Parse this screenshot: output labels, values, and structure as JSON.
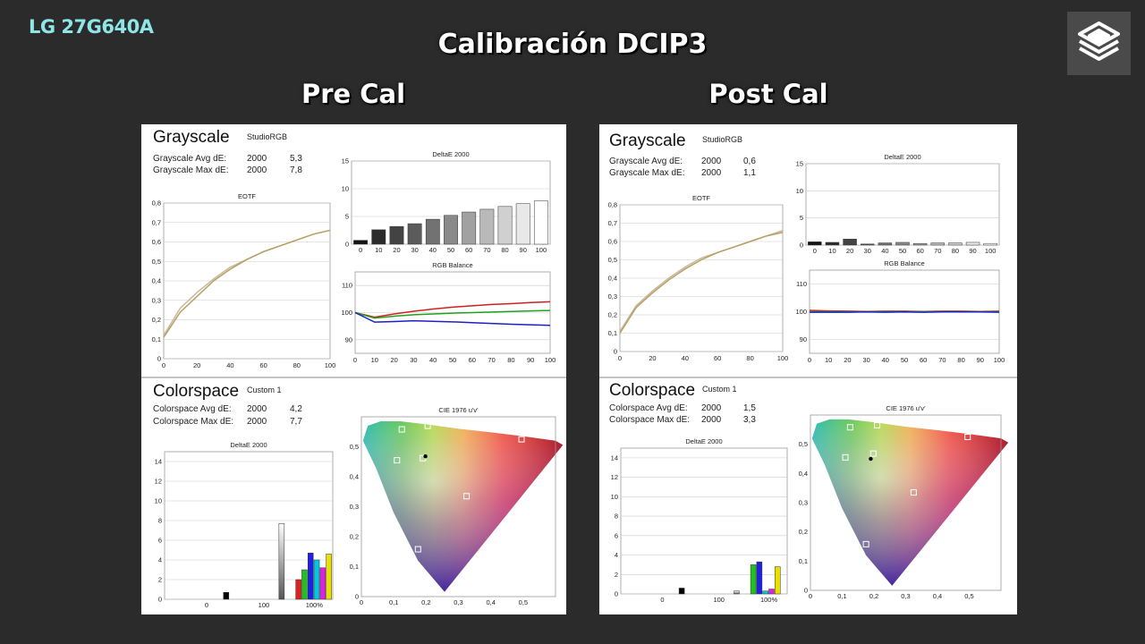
{
  "header": {
    "model": "LG 27G640A",
    "title": "Calibración DCIP3",
    "pre_label": "Pre Cal",
    "post_label": "Post Cal"
  },
  "colors": {
    "background": "#2b2b2b",
    "model_text": "#8ee6e6",
    "eotf_target": "#c9b89a",
    "eotf_measured": "#b5a165",
    "red": "#d02020",
    "green": "#20a020",
    "blue": "#2020c0"
  },
  "pre": {
    "grayscale": {
      "title": "Grayscale",
      "profile": "StudioRGB",
      "avg_label": "Grayscale Avg dE:",
      "avg_std": "2000",
      "avg_val": "5,3",
      "max_label": "Grayscale Max dE:",
      "max_std": "2000",
      "max_val": "7,8"
    },
    "colorspace": {
      "title": "Colorspace",
      "profile": "Custom 1",
      "avg_label": "Colorspace Avg dE:",
      "avg_std": "2000",
      "avg_val": "4,2",
      "max_label": "Colorspace Max dE:",
      "max_std": "2000",
      "max_val": "7,7"
    }
  },
  "post": {
    "grayscale": {
      "title": "Grayscale",
      "profile": "StudioRGB",
      "avg_label": "Grayscale Avg dE:",
      "avg_std": "2000",
      "avg_val": "0,6",
      "max_label": "Grayscale Max dE:",
      "max_std": "2000",
      "max_val": "1,1"
    },
    "colorspace": {
      "title": "Colorspace",
      "profile": "Custom 1",
      "avg_label": "Colorspace Avg dE:",
      "avg_std": "2000",
      "avg_val": "1,5",
      "max_label": "Colorspace Max dE:",
      "max_std": "2000",
      "max_val": "3,3"
    }
  },
  "chart_data": [
    {
      "id": "pre-eotf",
      "type": "line",
      "title": "EOTF",
      "x": [
        0,
        10,
        20,
        30,
        40,
        50,
        60,
        70,
        80,
        90,
        100
      ],
      "series": [
        {
          "values": [
            0.12,
            0.26,
            0.34,
            0.41,
            0.47,
            0.51,
            0.55,
            0.58,
            0.61,
            0.64,
            0.66
          ]
        },
        {
          "values": [
            0.11,
            0.24,
            0.32,
            0.4,
            0.46,
            0.51,
            0.55,
            0.58,
            0.61,
            0.64,
            0.66
          ]
        }
      ],
      "xlim": [
        0,
        100
      ],
      "ylim": [
        0,
        0.8
      ],
      "xticks": [
        "0",
        "20",
        "40",
        "60",
        "80",
        "100"
      ],
      "yticks": [
        "0",
        "0,1",
        "0,2",
        "0,3",
        "0,4",
        "0,5",
        "0,6",
        "0,7",
        "0,8"
      ]
    },
    {
      "id": "pre-grayscale-de",
      "type": "bar",
      "title": "DeltaE 2000",
      "categories": [
        "0",
        "10",
        "20",
        "30",
        "40",
        "50",
        "60",
        "70",
        "80",
        "90",
        "100"
      ],
      "values": [
        0.7,
        2.6,
        3.2,
        3.7,
        4.5,
        5.2,
        5.8,
        6.3,
        6.8,
        7.3,
        7.8
      ],
      "ylim": [
        0,
        15
      ],
      "yticks": [
        "0",
        "5",
        "10",
        "15"
      ]
    },
    {
      "id": "pre-rgb-balance",
      "type": "line",
      "title": "RGB Balance",
      "x": [
        0,
        10,
        20,
        30,
        40,
        50,
        60,
        70,
        80,
        90,
        100
      ],
      "series": [
        {
          "name": "Red",
          "values": [
            100,
            98.3,
            99.5,
            100.5,
            101.3,
            102,
            102.5,
            103,
            103.3,
            103.7,
            104
          ]
        },
        {
          "name": "Green",
          "values": [
            100,
            98,
            98.7,
            99.2,
            99.5,
            99.8,
            100,
            100.2,
            100.4,
            100.6,
            100.8
          ]
        },
        {
          "name": "Blue",
          "values": [
            100,
            96.5,
            96.7,
            97,
            96.8,
            96.6,
            96.3,
            96,
            95.7,
            95.5,
            95.3
          ]
        }
      ],
      "ylim": [
        85,
        115
      ],
      "yticks": [
        "90",
        "100",
        "110"
      ],
      "xticks": [
        "0",
        "10",
        "20",
        "30",
        "40",
        "50",
        "60",
        "70",
        "80",
        "90",
        "100"
      ]
    },
    {
      "id": "pre-colorspace-de",
      "type": "bar",
      "title": "DeltaE 2000",
      "categories": [
        "0",
        "100",
        "100%"
      ],
      "bars": [
        {
          "color": "#000000",
          "value": 0.7
        },
        {
          "color": "#ffffff",
          "value": 7.7
        },
        {
          "color": "#e02020",
          "value": 2.0
        },
        {
          "color": "#20c020",
          "value": 3.0
        },
        {
          "color": "#2020e0",
          "value": 4.7
        },
        {
          "color": "#00c8e0",
          "value": 4.0
        },
        {
          "color": "#e020e0",
          "value": 3.2
        },
        {
          "color": "#e8e000",
          "value": 4.6
        }
      ],
      "ylim": [
        0,
        15
      ],
      "yticks": [
        "0",
        "2",
        "4",
        "6",
        "8",
        "10",
        "12",
        "14"
      ]
    },
    {
      "id": "pre-cie",
      "type": "scatter",
      "title": "CIE 1976 u'v'",
      "points": [
        {
          "u": 0.495,
          "v": 0.525,
          "role": "target-red"
        },
        {
          "u": 0.125,
          "v": 0.558,
          "role": "target-green"
        },
        {
          "u": 0.175,
          "v": 0.158,
          "role": "target-blue"
        },
        {
          "u": 0.19,
          "v": 0.462,
          "role": "target-white"
        },
        {
          "u": 0.325,
          "v": 0.335,
          "role": "target-magenta"
        },
        {
          "u": 0.11,
          "v": 0.455,
          "role": "target-cyan"
        },
        {
          "u": 0.205,
          "v": 0.57,
          "role": "target-yellow"
        }
      ],
      "white_point": {
        "u": 0.198,
        "v": 0.468
      },
      "xlim": [
        0,
        0.6
      ],
      "ylim": [
        0,
        0.6
      ],
      "xticks": [
        "0",
        "0,1",
        "0,2",
        "0,3",
        "0,4",
        "0,5"
      ],
      "yticks": [
        "0",
        "0,1",
        "0,2",
        "0,3",
        "0,4",
        "0,5"
      ]
    },
    {
      "id": "post-eotf",
      "type": "line",
      "title": "EOTF",
      "x": [
        0,
        10,
        20,
        30,
        40,
        50,
        60,
        70,
        80,
        90,
        100
      ],
      "series": [
        {
          "values": [
            0.11,
            0.25,
            0.33,
            0.4,
            0.46,
            0.51,
            0.54,
            0.57,
            0.6,
            0.63,
            0.66
          ]
        },
        {
          "values": [
            0.1,
            0.24,
            0.32,
            0.39,
            0.45,
            0.5,
            0.54,
            0.57,
            0.6,
            0.63,
            0.65
          ]
        }
      ],
      "xlim": [
        0,
        100
      ],
      "ylim": [
        0,
        0.8
      ],
      "xticks": [
        "0",
        "20",
        "40",
        "60",
        "80",
        "100"
      ],
      "yticks": [
        "0",
        "0,1",
        "0,2",
        "0,3",
        "0,4",
        "0,5",
        "0,6",
        "0,7",
        "0,8"
      ]
    },
    {
      "id": "post-grayscale-de",
      "type": "bar",
      "title": "DeltaE 2000",
      "categories": [
        "0",
        "10",
        "20",
        "30",
        "40",
        "50",
        "60",
        "70",
        "80",
        "90",
        "100"
      ],
      "values": [
        0.6,
        0.5,
        1.1,
        0.2,
        0.4,
        0.5,
        0.3,
        0.4,
        0.4,
        0.5,
        0.3
      ],
      "ylim": [
        0,
        15
      ],
      "yticks": [
        "0",
        "5",
        "10",
        "15"
      ]
    },
    {
      "id": "post-rgb-balance",
      "type": "line",
      "title": "RGB Balance",
      "x": [
        0,
        10,
        20,
        30,
        40,
        50,
        60,
        70,
        80,
        90,
        100
      ],
      "series": [
        {
          "name": "Red",
          "values": [
            100.5,
            100.3,
            100.2,
            100.1,
            100.2,
            100.2,
            100.1,
            100.2,
            100.2,
            100.1,
            100.2
          ]
        },
        {
          "name": "Green",
          "values": [
            100,
            100,
            99.9,
            100,
            100,
            100,
            100,
            100,
            100,
            100,
            100
          ]
        },
        {
          "name": "Blue",
          "values": [
            99.8,
            99.8,
            99.8,
            99.9,
            99.8,
            99.9,
            99.8,
            99.9,
            99.9,
            99.9,
            99.8
          ]
        }
      ],
      "ylim": [
        85,
        115
      ],
      "yticks": [
        "90",
        "100",
        "110"
      ],
      "xticks": [
        "0",
        "10",
        "20",
        "30",
        "40",
        "50",
        "60",
        "70",
        "80",
        "90",
        "100"
      ]
    },
    {
      "id": "post-colorspace-de",
      "type": "bar",
      "title": "DeltaE 2000",
      "categories": [
        "0",
        "100",
        "100%"
      ],
      "bars": [
        {
          "color": "#000000",
          "value": 0.6
        },
        {
          "color": "#ffffff",
          "value": 0.3
        },
        {
          "color": "#20c020",
          "value": 3.0
        },
        {
          "color": "#2020e0",
          "value": 3.3
        },
        {
          "color": "#00c8e0",
          "value": 0.3
        },
        {
          "color": "#e020e0",
          "value": 0.5
        },
        {
          "color": "#e8e000",
          "value": 2.8
        }
      ],
      "ylim": [
        0,
        15
      ],
      "yticks": [
        "0",
        "2",
        "4",
        "6",
        "8",
        "10",
        "12",
        "14"
      ]
    },
    {
      "id": "post-cie",
      "type": "scatter",
      "title": "CIE 1976 u'v'",
      "points": [
        {
          "u": 0.495,
          "v": 0.525,
          "role": "target-red"
        },
        {
          "u": 0.125,
          "v": 0.558,
          "role": "target-green"
        },
        {
          "u": 0.175,
          "v": 0.158,
          "role": "target-blue"
        },
        {
          "u": 0.198,
          "v": 0.468,
          "role": "target-white"
        },
        {
          "u": 0.325,
          "v": 0.335,
          "role": "target-magenta"
        },
        {
          "u": 0.11,
          "v": 0.455,
          "role": "target-cyan"
        },
        {
          "u": 0.21,
          "v": 0.565,
          "role": "target-yellow"
        }
      ],
      "white_point": {
        "u": 0.19,
        "v": 0.45
      },
      "xlim": [
        0,
        0.6
      ],
      "ylim": [
        0,
        0.6
      ],
      "xticks": [
        "0",
        "0,1",
        "0,2",
        "0,3",
        "0,4",
        "0,5"
      ],
      "yticks": [
        "0",
        "0,1",
        "0,2",
        "0,3",
        "0,4",
        "0,5"
      ]
    }
  ]
}
